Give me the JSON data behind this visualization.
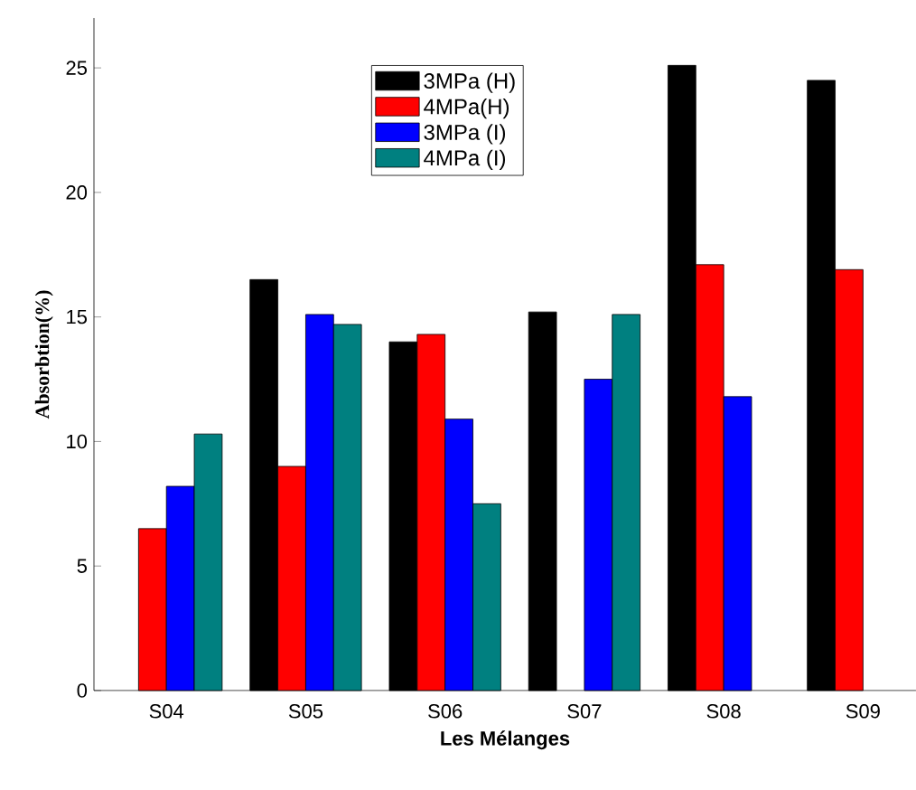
{
  "chart_data": {
    "type": "bar",
    "xlabel": "Les Mélanges",
    "ylabel": "Absorbtion(%)",
    "categories": [
      "S04",
      "S05",
      "S06",
      "S07",
      "S08",
      "S09"
    ],
    "series": [
      {
        "name": "3MPa (H)",
        "color": "#000000",
        "values": [
          null,
          16.5,
          14.0,
          15.2,
          25.1,
          24.5
        ]
      },
      {
        "name": "4MPa(H)",
        "color": "#ff0000",
        "values": [
          6.5,
          9.0,
          14.3,
          null,
          17.1,
          16.9
        ]
      },
      {
        "name": "3MPa (I)",
        "color": "#0000ff",
        "values": [
          8.2,
          15.1,
          10.9,
          12.5,
          11.8,
          null
        ]
      },
      {
        "name": "4MPa (I)",
        "color": "#008080",
        "values": [
          10.3,
          14.7,
          7.5,
          15.1,
          null,
          null
        ]
      }
    ],
    "ylim": [
      0,
      27
    ],
    "yticks": [
      0,
      5,
      10,
      15,
      20,
      25
    ],
    "legend": "top",
    "grid": false
  }
}
